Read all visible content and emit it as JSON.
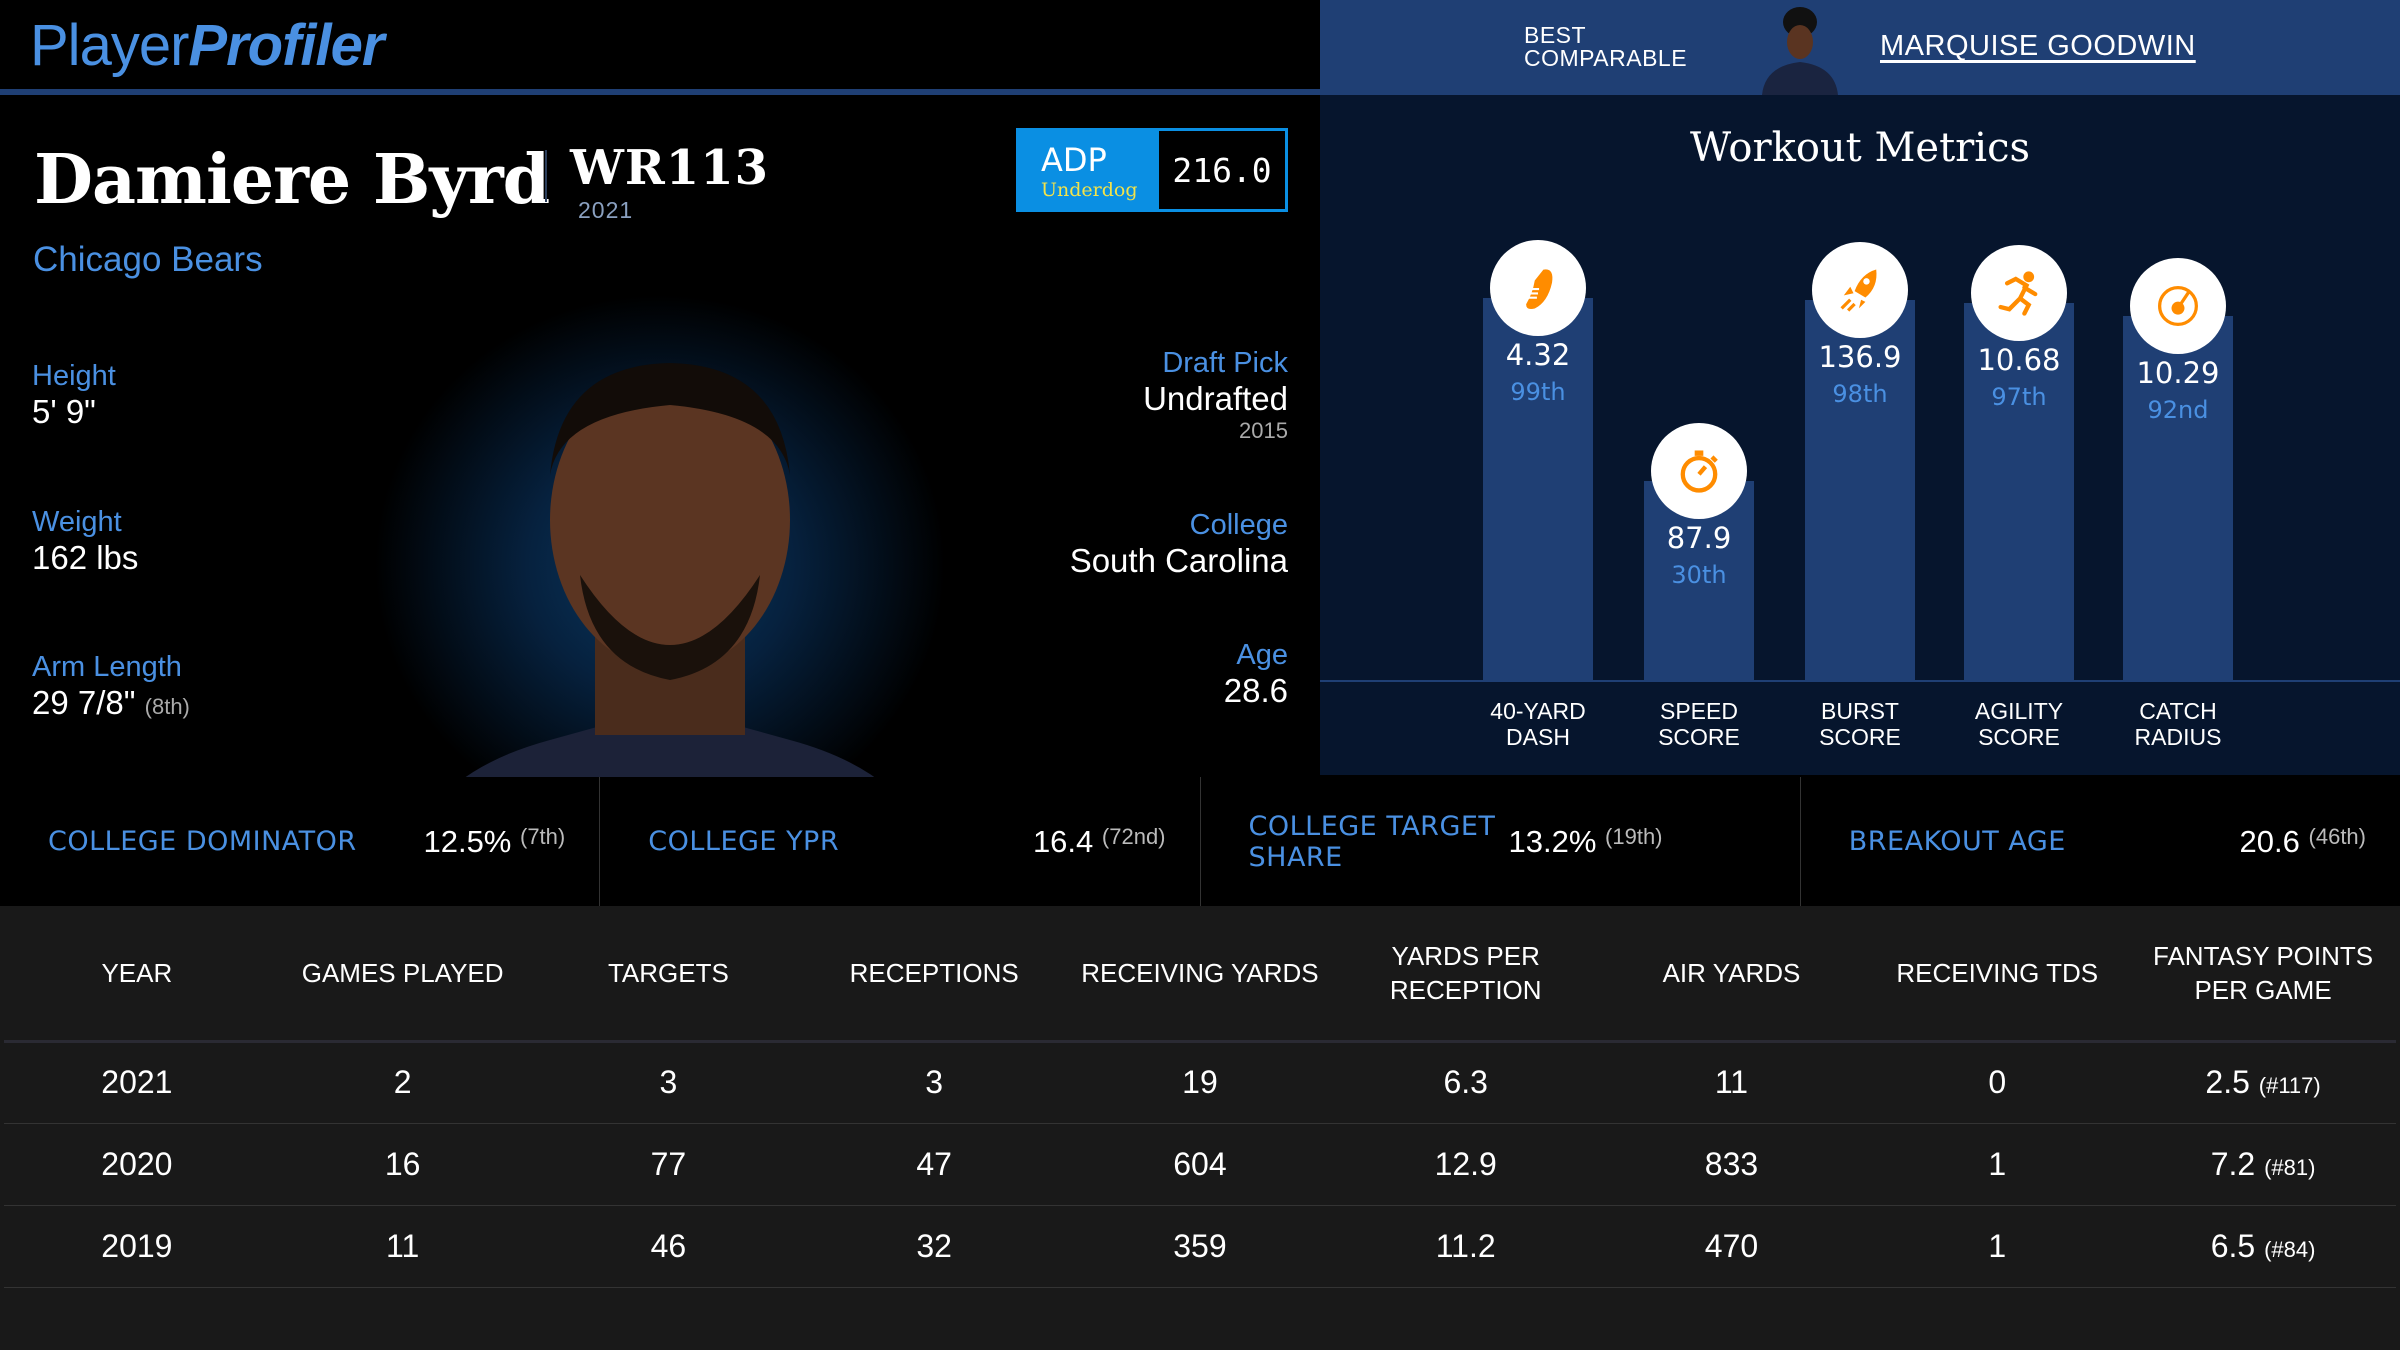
{
  "brand": {
    "part1": "Player",
    "part2": "Profiler"
  },
  "comparable": {
    "label_line1": "BEST",
    "label_line2": "COMPARABLE",
    "name": "MARQUISE GOODWIN"
  },
  "player": {
    "name": "Damiere Byrd",
    "rank": "WR113",
    "rank_year": "2021",
    "team": "Chicago Bears"
  },
  "adp": {
    "label": "ADP",
    "source": "Underdog",
    "value": "216.0"
  },
  "bio_left": [
    {
      "label": "Height",
      "value": "5' 9\"",
      "sub": ""
    },
    {
      "label": "Weight",
      "value": "162 lbs",
      "sub": ""
    },
    {
      "label": "Arm Length",
      "value": "29 7/8\"",
      "sub": "(8th)"
    }
  ],
  "bio_right": [
    {
      "label": "Draft Pick",
      "value": "Undrafted",
      "sub": "2015"
    },
    {
      "label": "College",
      "value": "South Carolina",
      "sub": ""
    },
    {
      "label": "Age",
      "value": "28.6",
      "sub": ""
    }
  ],
  "workout": {
    "title": "Workout Metrics",
    "accent": "#ff8c00",
    "metrics": [
      {
        "label1": "40-YARD",
        "label2": "DASH",
        "value": "4.32",
        "pct": "99th",
        "pct_num": 99,
        "icon": "shoe-icon"
      },
      {
        "label1": "SPEED",
        "label2": "SCORE",
        "value": "87.9",
        "pct": "30th",
        "pct_num": 30,
        "icon": "stopwatch-icon"
      },
      {
        "label1": "BURST",
        "label2": "SCORE",
        "value": "136.9",
        "pct": "98th",
        "pct_num": 98,
        "icon": "rocket-icon"
      },
      {
        "label1": "AGILITY",
        "label2": "SCORE",
        "value": "10.68",
        "pct": "97th",
        "pct_num": 97,
        "icon": "runner-icon"
      },
      {
        "label1": "CATCH",
        "label2": "RADIUS",
        "value": "10.29",
        "pct": "92nd",
        "pct_num": 92,
        "icon": "gauge-icon"
      }
    ]
  },
  "college_stats": [
    {
      "label": "COLLEGE DOMINATOR",
      "value": "12.5%",
      "rank": "(7th)"
    },
    {
      "label": "COLLEGE YPR",
      "value": "16.4",
      "rank": "(72nd)"
    },
    {
      "label": "COLLEGE TARGET SHARE",
      "value": "13.2%",
      "rank": "(19th)"
    },
    {
      "label": "BREAKOUT AGE",
      "value": "20.6",
      "rank": "(46th)"
    }
  ],
  "table": {
    "headers": [
      "YEAR",
      "GAMES PLAYED",
      "TARGETS",
      "RECEPTIONS",
      "RECEIVING YARDS",
      "YARDS PER RECEPTION",
      "AIR YARDS",
      "RECEIVING TDS",
      "FANTASY POINTS PER GAME"
    ],
    "rows": [
      [
        "2021",
        "2",
        "3",
        "3",
        "19",
        "6.3",
        "11",
        "0",
        "2.5",
        "(#117)"
      ],
      [
        "2020",
        "16",
        "77",
        "47",
        "604",
        "12.9",
        "833",
        "1",
        "7.2",
        "(#81)"
      ],
      [
        "2019",
        "11",
        "46",
        "32",
        "359",
        "11.2",
        "470",
        "1",
        "6.5",
        "(#84)"
      ]
    ]
  }
}
